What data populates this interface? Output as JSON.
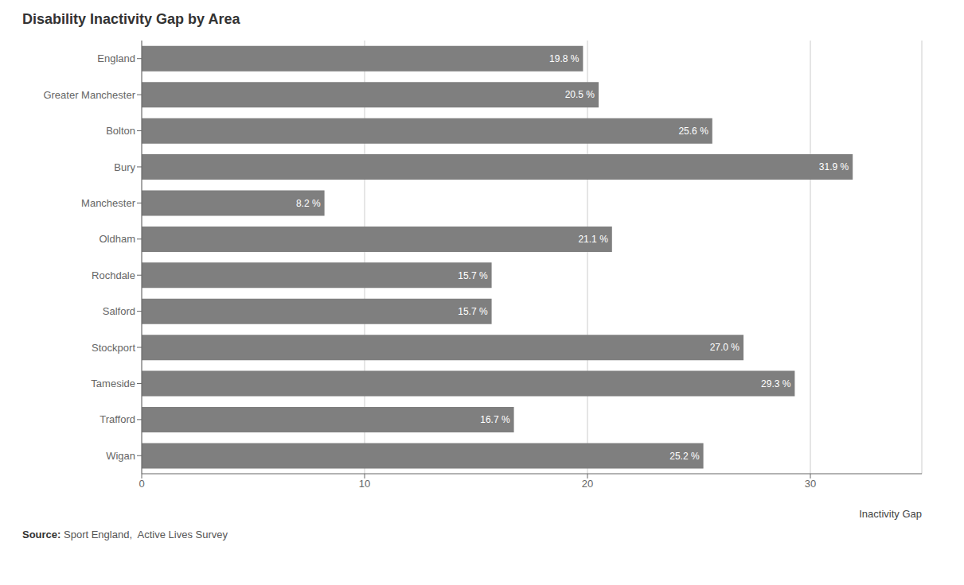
{
  "chart_data": {
    "type": "bar",
    "orientation": "horizontal",
    "title": "Disability Inactivity Gap by Area",
    "categories": [
      "England",
      "Greater Manchester",
      "Bolton",
      "Bury",
      "Manchester",
      "Oldham",
      "Rochdale",
      "Salford",
      "Stockport",
      "Tameside",
      "Trafford",
      "Wigan"
    ],
    "values": [
      19.8,
      20.5,
      25.6,
      31.9,
      8.2,
      21.1,
      15.7,
      15.7,
      27.0,
      29.3,
      16.7,
      25.2
    ],
    "value_labels": [
      "19.8 %",
      "20.5 %",
      "25.6 %",
      "31.9 %",
      "8.2 %",
      "21.1 %",
      "15.7 %",
      "15.7 %",
      "27.0 %",
      "29.3 %",
      "16.7 %",
      "25.2 %"
    ],
    "data_labels": true,
    "color": "#7F7F7F",
    "xlabel": "Inactivity Gap",
    "xlim": [
      0,
      35
    ],
    "xticks": [
      0,
      10,
      20,
      30
    ],
    "grid": true,
    "annotations": [
      "Source:",
      " Sport England,  Active Lives Survey"
    ]
  }
}
